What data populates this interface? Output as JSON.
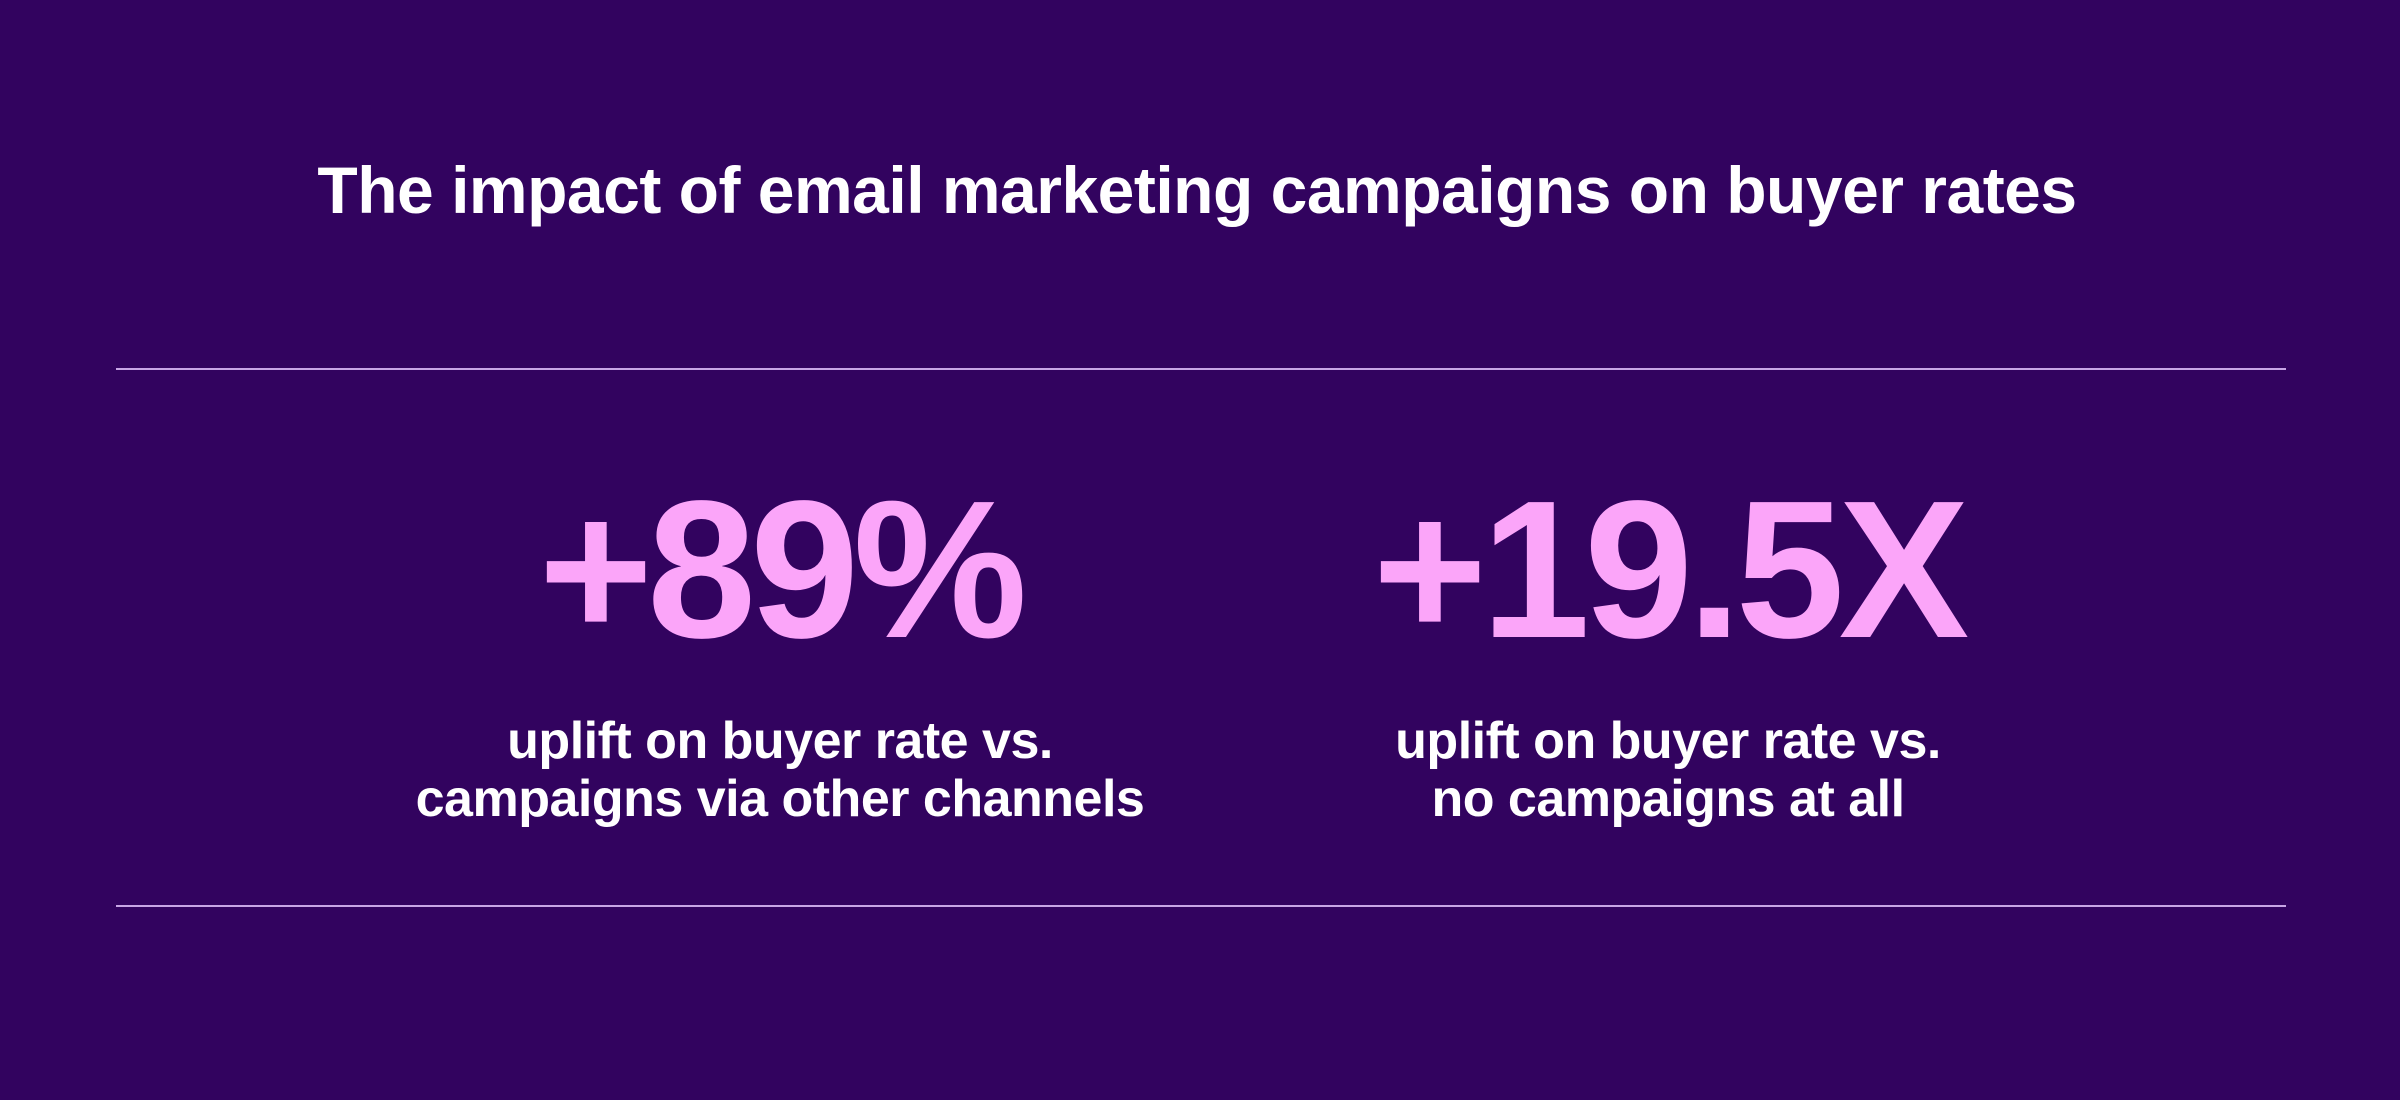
{
  "header": {
    "title": "The impact of email marketing campaigns on buyer rates"
  },
  "stats": [
    {
      "value": "+89%",
      "caption_line1": "uplift on buyer rate vs.",
      "caption_line2": "campaigns via other channels"
    },
    {
      "value": "+19.5X",
      "caption_line1": "uplift on buyer rate vs.",
      "caption_line2": "no campaigns at all"
    }
  ],
  "colors": {
    "background": "#32035f",
    "accent": "#fba5f9",
    "text": "#ffffff",
    "divider": "#c8a6e6"
  }
}
